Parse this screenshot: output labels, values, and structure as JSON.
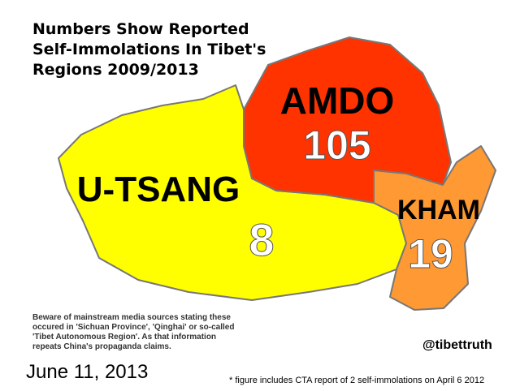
{
  "title_lines": [
    "Numbers Show Reported",
    "Self-Immolations In Tibet's",
    "Regions 2009/2013"
  ],
  "regions": [
    {
      "name": "AMDO",
      "value": "105"
    },
    {
      "name": "U-TSANG",
      "value": "8"
    },
    {
      "name": "KHAM",
      "value": "19"
    }
  ],
  "warning_lines": [
    "Beware of mainstream media sources stating these",
    "occured in 'Sichuan Province', 'Qinghai' or so-called",
    "'Tibet Autonomous Region'. As that information",
    "repeats China's propaganda claims."
  ],
  "handle": "@tibettruth",
  "date": "June 11, 2013",
  "footnote": "* figure includes CTA report of 2 self-immolations on April 6 2012"
}
